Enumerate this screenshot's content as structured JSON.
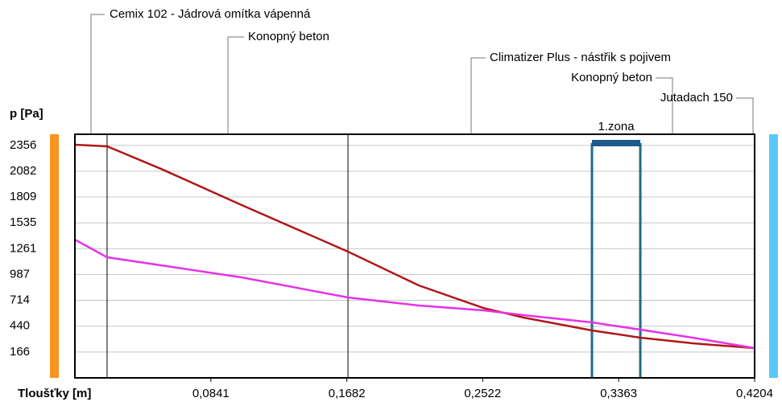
{
  "chart_data": {
    "type": "line",
    "y_label": "p [Pa]",
    "x_label": "Tloušťky [m]",
    "layers": [
      "Cemix 102 - Jádrová omítka vápenná",
      "Konopný beton",
      "Climatizer Plus - nástřik s pojivem",
      "Konopný beton",
      "Jutadach 150"
    ],
    "zone_label": "1.zona",
    "boundaries": [
      0.0199,
      0.1689
    ],
    "zone": [
      0.3198,
      0.3497
    ],
    "x": [
      0,
      0.0199,
      0.0533,
      0.1031,
      0.1689,
      0.2127,
      0.2526,
      0.2775,
      0.3198,
      0.3497,
      0.3821,
      0.4204
    ],
    "series": [
      {
        "color": "#b01818",
        "values": [
          2363,
          2346,
          2107,
          1724,
          1230,
          872,
          633,
          531,
          395,
          318,
          258,
          207
        ]
      },
      {
        "color": "#e632e6",
        "values": [
          1357,
          1170,
          1085,
          957,
          744,
          659,
          608,
          557,
          480,
          403,
          318,
          207
        ]
      }
    ],
    "xlim": [
      0,
      0.4204
    ],
    "xticks": [
      {
        "value": 0.0841,
        "label": "0,0841"
      },
      {
        "value": 0.1682,
        "label": "0,1682"
      },
      {
        "value": 0.2522,
        "label": "0,2522"
      },
      {
        "value": 0.3363,
        "label": "0,3363"
      },
      {
        "value": 0.4204,
        "label": "0,4204"
      }
    ],
    "ylim": [
      -108,
      2474
    ],
    "yticks": [
      166,
      440,
      714,
      987,
      1261,
      1535,
      1809,
      2082,
      2356
    ],
    "grid": true
  }
}
